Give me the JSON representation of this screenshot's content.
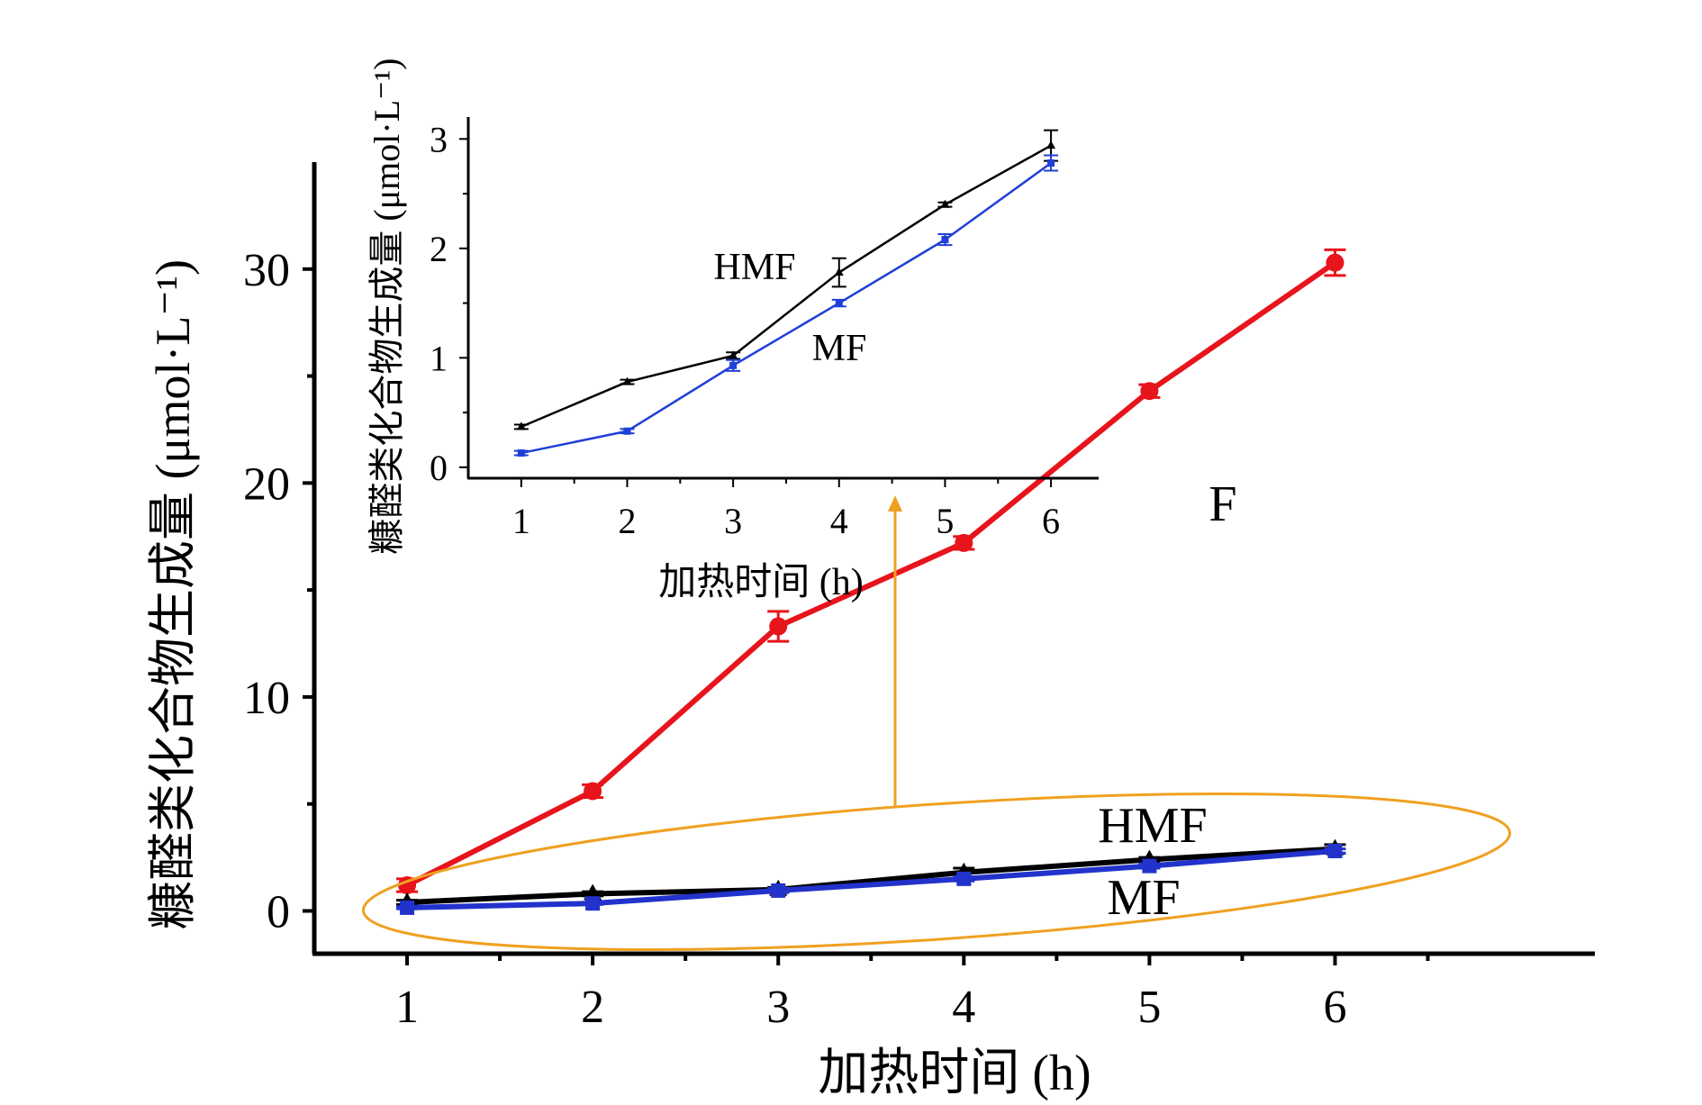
{
  "chart_data": [
    {
      "id": "main",
      "type": "line",
      "x": [
        1,
        2,
        3,
        4,
        5,
        6
      ],
      "xlim": [
        0.5,
        7.4
      ],
      "ylim": [
        -2,
        35
      ],
      "xticks": [
        1,
        2,
        3,
        4,
        5,
        6
      ],
      "xtick_labels": [
        "1",
        "2",
        "3",
        "4",
        "5",
        "6"
      ],
      "yticks": [
        0,
        10,
        20,
        30
      ],
      "ytick_labels": [
        "0",
        "10",
        "20",
        "30"
      ],
      "xlabel": "加热时间 (h)",
      "ylabel": "糠醛类化合物生成量 (μmol·L⁻¹)",
      "series": [
        {
          "name": "F",
          "label": "F",
          "color": "#e8141c",
          "marker": "circle",
          "values": [
            1.2,
            5.6,
            13.3,
            17.2,
            24.3,
            30.3
          ],
          "errors": [
            0.3,
            0.3,
            0.7,
            0.3,
            0.3,
            0.6
          ]
        },
        {
          "name": "HMF",
          "label": "HMF",
          "color": "#000000",
          "marker": "triangle",
          "values": [
            0.4,
            0.8,
            1.0,
            1.8,
            2.4,
            2.9
          ],
          "errors": [
            0.1,
            0.1,
            0.1,
            0.2,
            0.1,
            0.2
          ]
        },
        {
          "name": "MF",
          "label": "MF",
          "color": "#2233cc",
          "marker": "square",
          "values": [
            0.15,
            0.35,
            0.95,
            1.5,
            2.1,
            2.8
          ],
          "errors": [
            0.05,
            0.05,
            0.1,
            0.1,
            0.1,
            0.1
          ]
        }
      ]
    },
    {
      "id": "inset",
      "type": "line",
      "x": [
        1,
        2,
        3,
        4,
        5,
        6
      ],
      "xlim": [
        0.5,
        6.45
      ],
      "ylim": [
        -0.1,
        3.2
      ],
      "xticks": [
        1,
        2,
        3,
        4,
        5,
        6
      ],
      "xtick_labels": [
        "1",
        "2",
        "3",
        "4",
        "5",
        "6"
      ],
      "yticks": [
        0,
        1,
        2,
        3
      ],
      "ytick_labels": [
        "0",
        "1",
        "2",
        "3"
      ],
      "xlabel": "加热时间 (h)",
      "ylabel": "糠醛类化合物生成量 (μmol·L⁻¹)",
      "series": [
        {
          "name": "HMF",
          "label": "HMF",
          "color": "#000000",
          "marker": "triangle",
          "values": [
            0.37,
            0.78,
            1.02,
            1.78,
            2.4,
            2.94
          ],
          "errors": [
            0.02,
            0.02,
            0.03,
            0.13,
            0.02,
            0.14
          ]
        },
        {
          "name": "MF",
          "label": "MF",
          "color": "#1f3fd8",
          "marker": "square",
          "values": [
            0.13,
            0.33,
            0.93,
            1.5,
            2.08,
            2.78
          ],
          "errors": [
            0.02,
            0.02,
            0.05,
            0.03,
            0.05,
            0.07
          ]
        }
      ]
    }
  ],
  "annotation": {
    "ellipse_color": "#f0a020",
    "arrow_color": "#f0a020"
  }
}
